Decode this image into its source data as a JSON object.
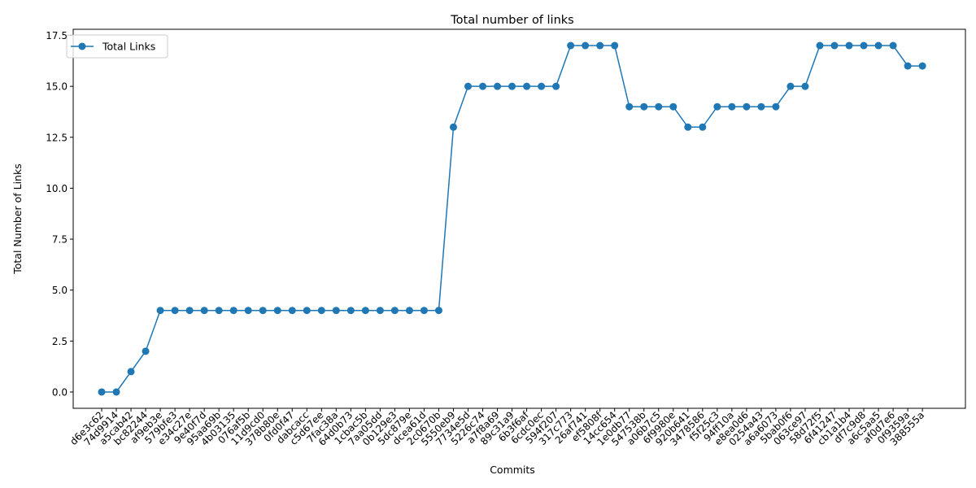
{
  "chart_data": {
    "type": "line",
    "title": "Total number of links",
    "xlabel": "Commits",
    "ylabel": "Total Number of Links",
    "ylim": [
      -0.8,
      17.8
    ],
    "yticks": [
      0.0,
      2.5,
      5.0,
      7.5,
      10.0,
      12.5,
      15.0,
      17.5
    ],
    "ytick_labels": [
      "0.0",
      "2.5",
      "5.0",
      "7.5",
      "10.0",
      "12.5",
      "15.0",
      "17.5"
    ],
    "grid": false,
    "legend_position": "top-left",
    "categories": [
      "d6e3c62",
      "74d9914",
      "a5cab42",
      "bc82244",
      "af9eb3e",
      "579bfe3",
      "e34c27e",
      "9e40f7d",
      "95aa69b",
      "4b03135",
      "076af5b",
      "11d9cd0",
      "378b80e",
      "0fd0f47",
      "dabcacc",
      "c5d67ee",
      "7fac38a",
      "64d0b73",
      "1cbac5b",
      "7aa05dd",
      "0b129e3",
      "5dc879e",
      "dcea61d",
      "2c0670b",
      "5550eb9",
      "7734e5d",
      "5226c74",
      "a7f8a69",
      "89c31a9",
      "6b3f6af",
      "6cdc0ec",
      "594f207",
      "317c773",
      "26af741",
      "ef5808f",
      "14cc654",
      "1e0db77",
      "547538b",
      "a06b7c5",
      "6f9980e",
      "920b641",
      "3478586",
      "f5f25c3",
      "94ff10a",
      "e8ea0d6",
      "0254a43",
      "a6a6073",
      "5bab0f6",
      "063ce97",
      "58d72f5",
      "6f41247",
      "cb1a1b4",
      "df7c9d8",
      "a6c5aa5",
      "af0d7e6",
      "0f9359a",
      "388555a"
    ],
    "series": [
      {
        "name": "Total Links",
        "color": "#1f77b4",
        "marker": "circle",
        "values": [
          0,
          0,
          1,
          2,
          4,
          4,
          4,
          4,
          4,
          4,
          4,
          4,
          4,
          4,
          4,
          4,
          4,
          4,
          4,
          4,
          4,
          4,
          4,
          4,
          13,
          15,
          15,
          15,
          15,
          15,
          15,
          15,
          17,
          17,
          17,
          17,
          14,
          14,
          14,
          14,
          13,
          13,
          14,
          14,
          14,
          14,
          14,
          15,
          15,
          17,
          17,
          17,
          17,
          17,
          17,
          16,
          16
        ]
      }
    ]
  }
}
